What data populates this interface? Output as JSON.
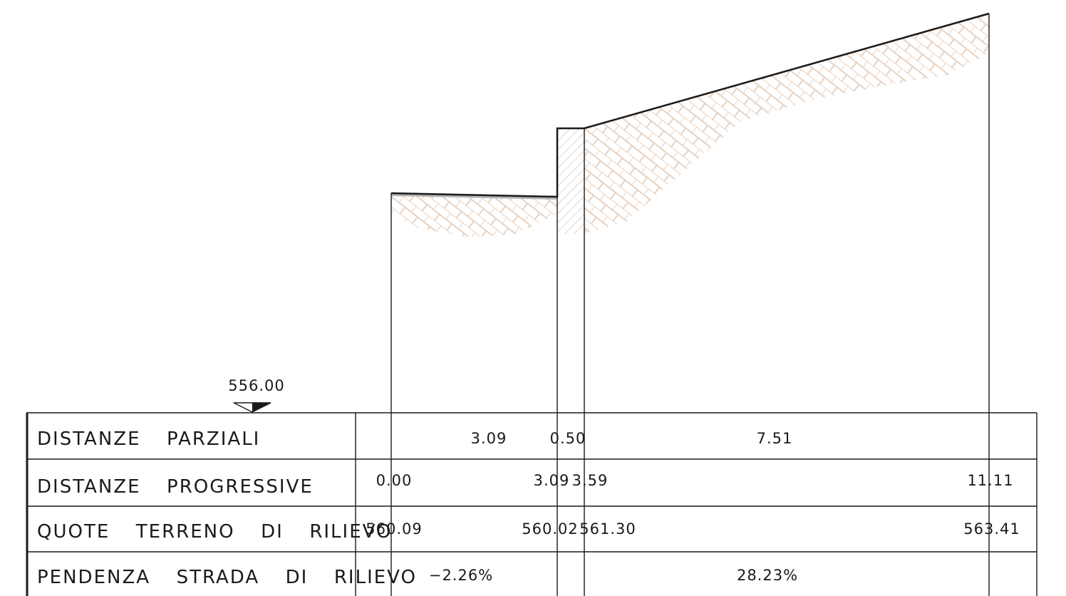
{
  "datum": {
    "value": "556.00"
  },
  "table": {
    "rows": [
      {
        "key": "distanze_parziali",
        "label": "DISTANZE  PARZIALI"
      },
      {
        "key": "distanze_progressive",
        "label": "DISTANZE  PROGRESSIVE"
      },
      {
        "key": "quote_terreno",
        "label": "QUOTE  TERRENO  DI  RILIEVO"
      },
      {
        "key": "pendenza",
        "label": "PENDENZA  STRADA  DI  RILIEVO"
      }
    ],
    "partial_distances": [
      "3.09",
      "0.50",
      "7.51"
    ],
    "progressive_distances": [
      "0.00",
      "3.09",
      "3.59",
      "11.11"
    ],
    "elevations": [
      "560.09",
      "560.02",
      "561.30",
      "563.41"
    ],
    "slopes": [
      "−2.26%",
      "28.23%"
    ]
  },
  "colors": {
    "line": "#1a1a1a",
    "terrain_hatch": "#e9d2c0",
    "wall_hatch": "#b8b8b8",
    "road_surface": "#b5b5b5"
  }
}
